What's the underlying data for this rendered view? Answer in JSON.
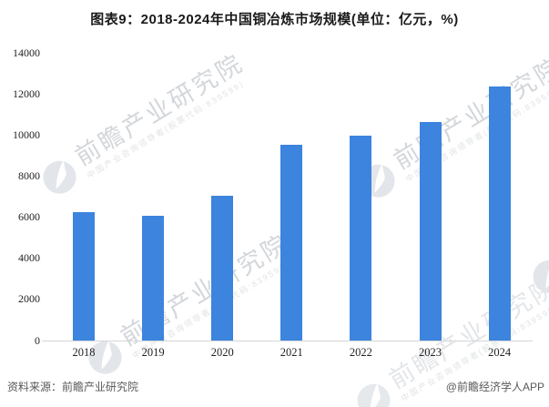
{
  "title": "图表9：2018-2024年中国铜冶炼市场规模(单位：亿元，%)",
  "footer": {
    "source": "资料来源：前瞻产业研究院",
    "credit": "@前瞻经济学人APP"
  },
  "watermark": {
    "brand": "前瞻产业研究院",
    "sub": "中国产业咨询领导者(股票代码:839599)",
    "logo": "qianzhan-logo"
  },
  "colors": {
    "bar": "#3C84DE",
    "axis_line": "#d6d6d6",
    "title_text": "#1a1a1a",
    "tick_text": "#222222",
    "footer_text": "#595959",
    "watermark_text": "#d3d7db"
  },
  "chart_data": {
    "type": "bar",
    "title": "图表9：2018-2024年中国铜冶炼市场规模(单位：亿元，%)",
    "categories": [
      "2018",
      "2019",
      "2020",
      "2021",
      "2022",
      "2023",
      "2024"
    ],
    "values": [
      6270,
      6090,
      7070,
      9560,
      10000,
      10670,
      12400
    ],
    "xlabel": "",
    "ylabel": "",
    "unit": "亿元",
    "ylim": [
      0,
      14000
    ],
    "yticks": [
      0,
      2000,
      4000,
      6000,
      8000,
      10000,
      12000,
      14000
    ],
    "grid": false,
    "legend_position": "none"
  }
}
